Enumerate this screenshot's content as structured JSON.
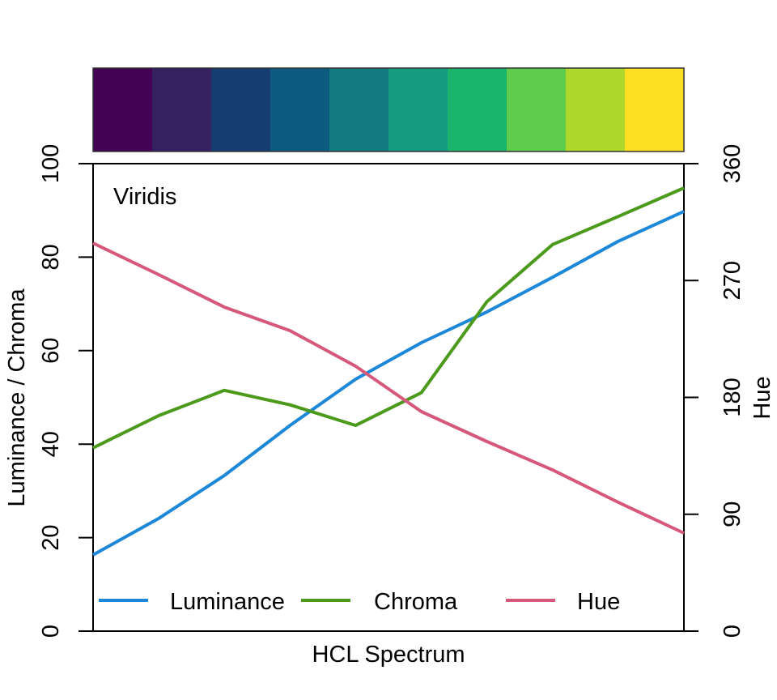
{
  "chart_data": {
    "type": "line",
    "title": "Viridis",
    "xlabel": "HCL Spectrum",
    "ylabel": "Luminance / Chroma",
    "ylabel_right": "Hue",
    "ylim": [
      0,
      100
    ],
    "ylim_right": [
      0,
      360
    ],
    "yticks": [
      "0",
      "20",
      "40",
      "60",
      "80",
      "100"
    ],
    "yticks_right": [
      "0",
      "90",
      "180",
      "270",
      "360"
    ],
    "x": [
      1,
      2,
      3,
      4,
      5,
      6,
      7,
      8,
      9,
      10
    ],
    "grid": false,
    "legend_position": "bottom",
    "swatches": [
      "#440154",
      "#352060",
      "#163D72",
      "#0C5A7E",
      "#127B82",
      "#149A7E",
      "#1BB46C",
      "#5FCC4E",
      "#AED82B",
      "#FDE021"
    ],
    "series": [
      {
        "name": "Luminance",
        "axis": "left",
        "color": "#1E88D8",
        "values": [
          16.3,
          24.1,
          33.3,
          44.0,
          53.9,
          61.7,
          68.3,
          75.7,
          83.4,
          89.8
        ]
      },
      {
        "name": "Chroma",
        "axis": "left",
        "color": "#4C9A1C",
        "values": [
          39.2,
          46.1,
          51.5,
          48.4,
          44.0,
          51.0,
          70.5,
          82.7,
          88.7,
          94.8
        ]
      },
      {
        "name": "Hue",
        "axis": "right",
        "color": "#D6587A",
        "values": [
          298.8,
          274.5,
          249.5,
          231.4,
          204.0,
          169.1,
          146.0,
          124.1,
          99.2,
          75.5
        ]
      }
    ]
  }
}
